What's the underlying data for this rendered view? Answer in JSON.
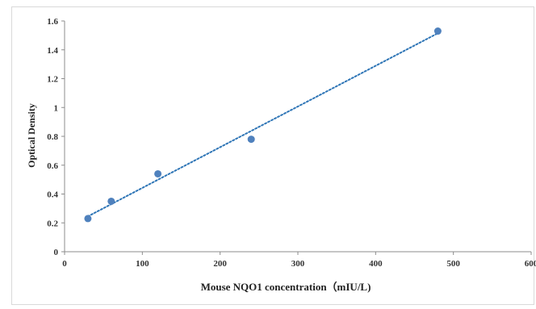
{
  "chart_data": {
    "type": "scatter",
    "title": "",
    "xlabel": "Mouse NQO1 concentration（mIU/L)",
    "ylabel": "Optical Density",
    "xlim": [
      0,
      600
    ],
    "ylim": [
      0,
      1.6
    ],
    "x_ticks": [
      "0",
      "100",
      "200",
      "300",
      "400",
      "500",
      "600"
    ],
    "y_ticks": [
      "0",
      "0.2",
      "0.4",
      "0.6",
      "0.8",
      "1",
      "1.2",
      "1.4",
      "1.6"
    ],
    "grid": false,
    "legend": "none",
    "series": [
      {
        "x": [
          30,
          60,
          120,
          240,
          480
        ],
        "y": [
          0.23,
          0.35,
          0.54,
          0.78,
          1.53
        ],
        "color": "#4f81bd"
      }
    ],
    "trendline": {
      "style": "dotted",
      "color": "#2e75b6",
      "x": [
        30,
        480
      ],
      "y": [
        0.245,
        1.515
      ]
    }
  }
}
